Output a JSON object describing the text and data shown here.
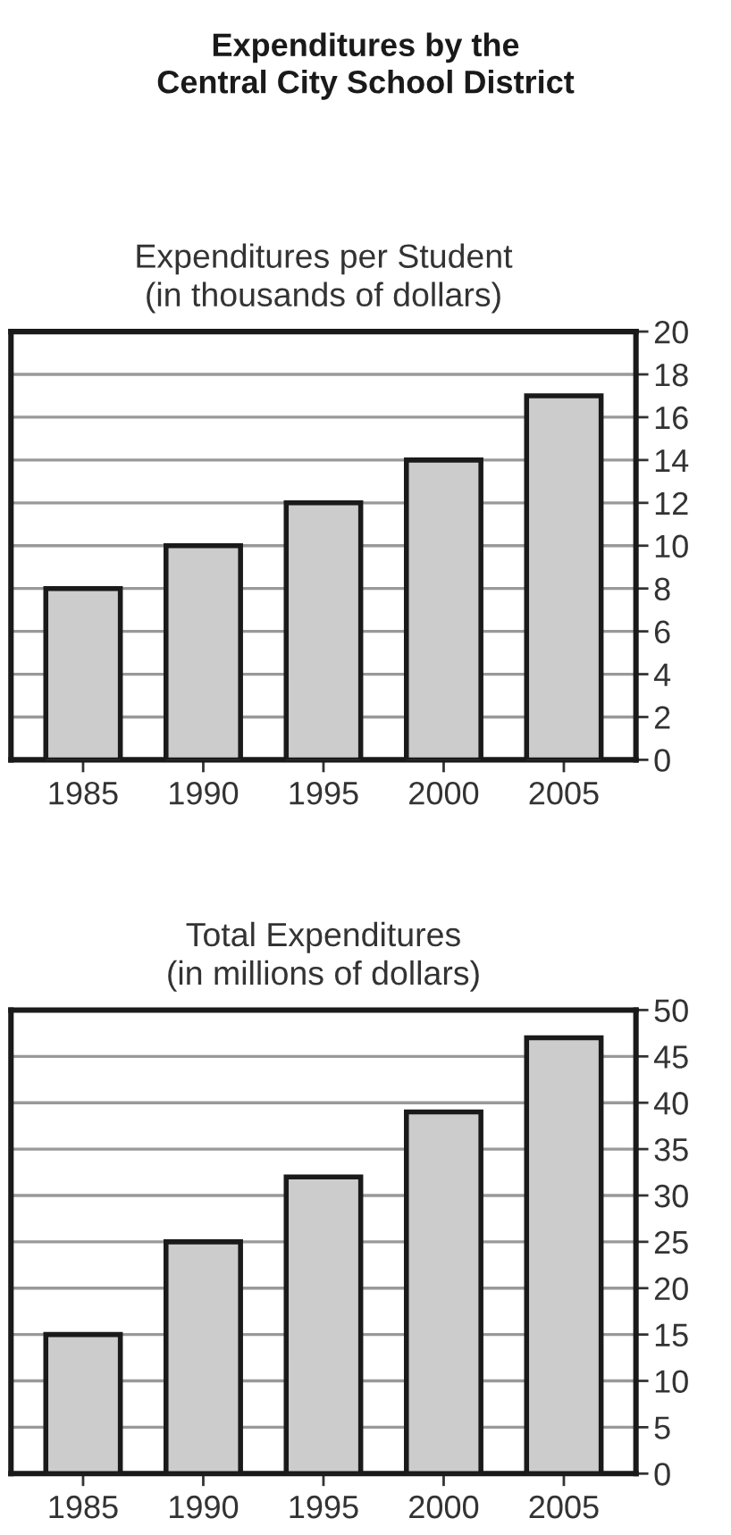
{
  "chart_data": [
    {
      "type": "bar",
      "title": "Expenditures by the\nCentral City School District",
      "subtitle": "Expenditures per Student\n(in thousands of dollars)",
      "categories": [
        "1985",
        "1990",
        "1995",
        "2000",
        "2005"
      ],
      "values": [
        8,
        10,
        12,
        14,
        17
      ],
      "color": "#cccccc",
      "ylim": [
        0,
        20
      ],
      "yticks": [
        0,
        2,
        4,
        6,
        8,
        10,
        12,
        14,
        16,
        18,
        20
      ],
      "grid": "y"
    },
    {
      "type": "bar",
      "title": "Total Expenditures\n(in millions of dollars)",
      "categories": [
        "1985",
        "1990",
        "1995",
        "2000",
        "2005"
      ],
      "values": [
        15,
        25,
        32,
        39,
        47
      ],
      "color": "#cccccc",
      "ylim": [
        0,
        50
      ],
      "yticks": [
        0,
        5,
        10,
        15,
        20,
        25,
        30,
        35,
        40,
        45,
        50
      ],
      "grid": "y"
    }
  ]
}
